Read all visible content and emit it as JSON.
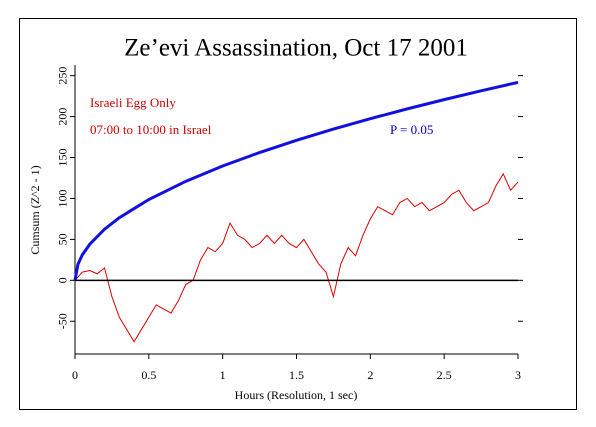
{
  "chart_data": {
    "type": "line",
    "title": "Ze’evi Assassination, Oct 17 2001",
    "xlabel": "Hours (Resolution, 1 sec)",
    "ylabel": "Cumsum (Z^2 - 1)",
    "xlim": [
      0,
      3
    ],
    "xticks": [
      0,
      0.5,
      1,
      1.5,
      2,
      2.5,
      3
    ],
    "ylim": [
      -90,
      263
    ],
    "yticks": [
      -50,
      0,
      50,
      100,
      150,
      200,
      250
    ],
    "hline": 0,
    "annotations": [
      {
        "text": "Israeli Egg Only",
        "color": "#d00000"
      },
      {
        "text": "07:00 to 10:00 in Israel",
        "color": "#d00000"
      },
      {
        "text": "P = 0.05",
        "color": "#0000d0"
      }
    ],
    "series": [
      {
        "color": "#e00000",
        "x": [
          0,
          0.05,
          0.1,
          0.15,
          0.2,
          0.25,
          0.3,
          0.35,
          0.4,
          0.45,
          0.5,
          0.55,
          0.6,
          0.65,
          0.7,
          0.75,
          0.8,
          0.85,
          0.9,
          0.95,
          1,
          1.05,
          1.1,
          1.15,
          1.2,
          1.25,
          1.3,
          1.35,
          1.4,
          1.45,
          1.5,
          1.55,
          1.6,
          1.65,
          1.7,
          1.75,
          1.8,
          1.85,
          1.9,
          1.95,
          2,
          2.05,
          2.1,
          2.15,
          2.2,
          2.25,
          2.3,
          2.35,
          2.4,
          2.45,
          2.5,
          2.55,
          2.6,
          2.65,
          2.7,
          2.75,
          2.8,
          2.85,
          2.9,
          2.95,
          3
        ],
        "values": [
          0,
          10,
          12,
          8,
          15,
          -20,
          -45,
          -60,
          -75,
          -60,
          -45,
          -30,
          -35,
          -40,
          -25,
          -5,
          0,
          25,
          40,
          35,
          45,
          70,
          55,
          50,
          40,
          45,
          55,
          45,
          55,
          45,
          40,
          50,
          35,
          20,
          10,
          -20,
          20,
          40,
          30,
          55,
          75,
          90,
          85,
          80,
          95,
          100,
          90,
          95,
          85,
          90,
          95,
          105,
          110,
          95,
          85,
          90,
          95,
          115,
          130,
          110,
          120
        ]
      },
      {
        "color": "#1010e0",
        "x": [
          0,
          0.02,
          0.05,
          0.1,
          0.2,
          0.3,
          0.5,
          0.75,
          1,
          1.25,
          1.5,
          1.75,
          2,
          2.25,
          2.5,
          2.75,
          3
        ],
        "values": [
          0,
          19.7,
          31.2,
          44.1,
          62.4,
          76.5,
          98.7,
          120.9,
          139.6,
          156.1,
          171.0,
          184.7,
          197.4,
          209.4,
          220.7,
          231.5,
          241.8
        ]
      }
    ]
  }
}
